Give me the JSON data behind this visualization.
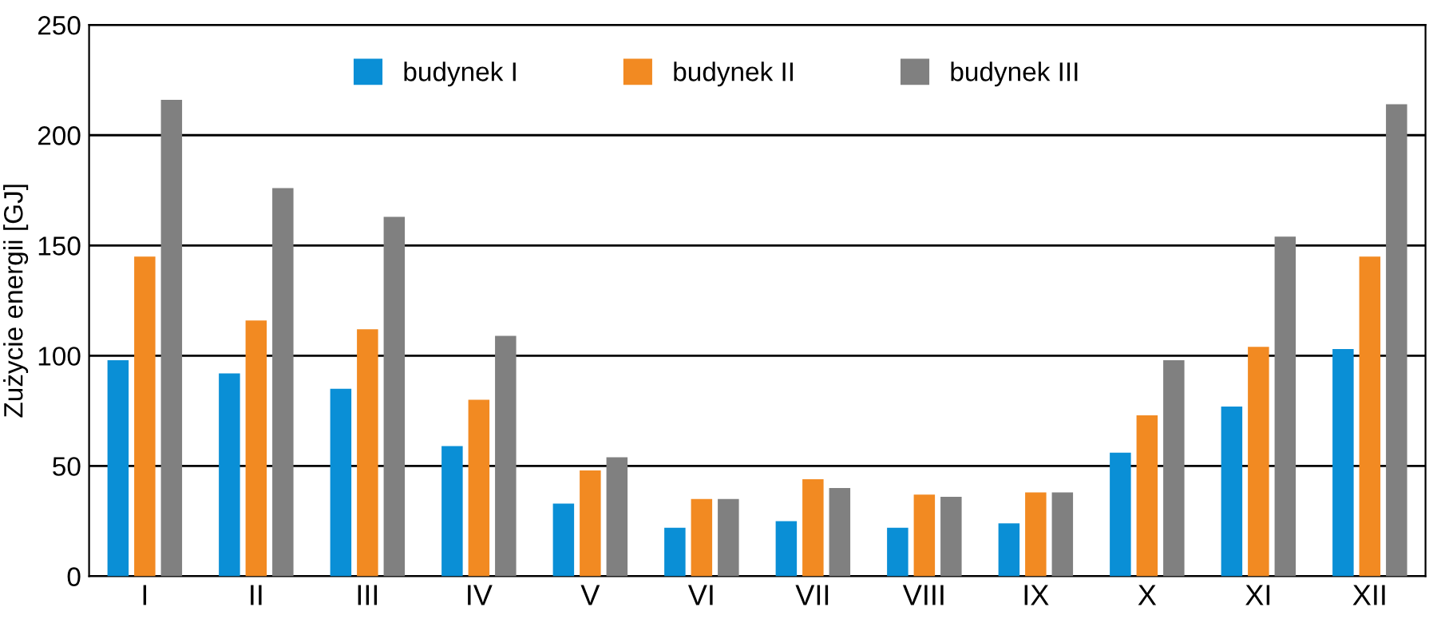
{
  "chart_data": {
    "type": "bar",
    "ylabel": "Zużycie energii [GJ]",
    "categories": [
      "I",
      "II",
      "III",
      "IV",
      "V",
      "VI",
      "VII",
      "VIII",
      "IX",
      "X",
      "XI",
      "XII"
    ],
    "series": [
      {
        "name": "budynek I",
        "color": "#0a8fd6",
        "values": [
          98,
          92,
          85,
          59,
          33,
          22,
          25,
          22,
          24,
          56,
          77,
          103
        ]
      },
      {
        "name": "budynek II",
        "color": "#f28a22",
        "values": [
          145,
          116,
          112,
          80,
          48,
          35,
          44,
          37,
          38,
          73,
          104,
          145
        ]
      },
      {
        "name": "budynek III",
        "color": "#808080",
        "values": [
          216,
          176,
          163,
          109,
          54,
          35,
          40,
          36,
          38,
          98,
          154,
          214
        ]
      }
    ],
    "ylim": [
      0,
      250
    ],
    "yticks": [
      0,
      50,
      100,
      150,
      200,
      250
    ],
    "grid": "y",
    "legend": "top"
  }
}
